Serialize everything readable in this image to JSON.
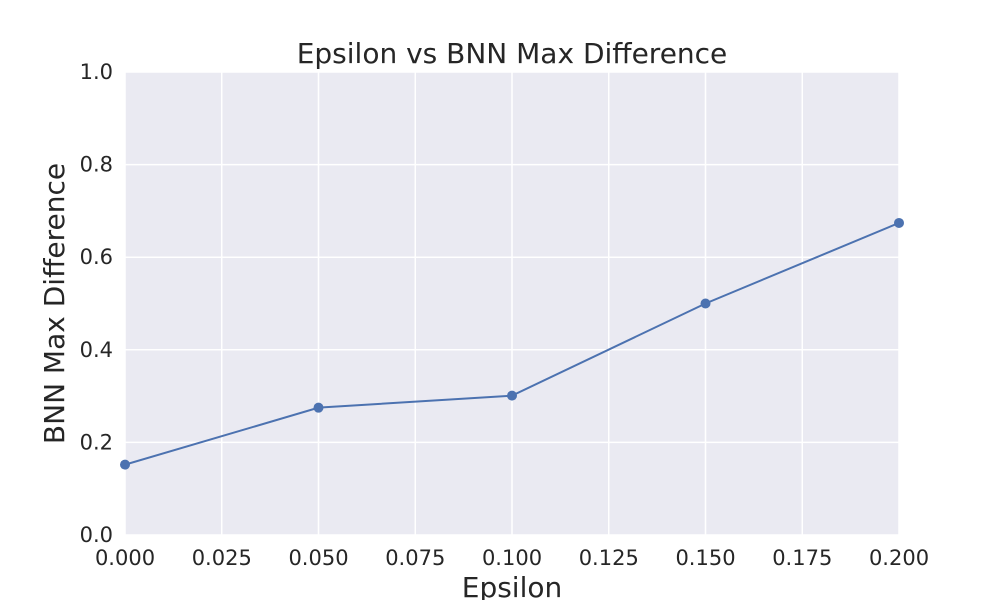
{
  "chart_data": {
    "type": "line",
    "title": "Epsilon vs BNN Max Difference",
    "xlabel": "Epsilon",
    "ylabel": "BNN Max Difference",
    "xlim": [
      0,
      0.2
    ],
    "ylim": [
      0,
      1.0
    ],
    "xticks": [
      "0.000",
      "0.025",
      "0.050",
      "0.075",
      "0.100",
      "0.125",
      "0.150",
      "0.175",
      "0.200"
    ],
    "yticks": [
      "0.0",
      "0.2",
      "0.4",
      "0.6",
      "0.8",
      "1.0"
    ],
    "grid": true,
    "series": [
      {
        "x": [
          0.0,
          0.05,
          0.1,
          0.15,
          0.2
        ],
        "y": [
          0.152,
          0.275,
          0.301,
          0.5,
          0.674
        ],
        "marker": "circle",
        "color": "#4c72b0"
      }
    ],
    "colors": {
      "plot_background": "#eaeaf2",
      "grid": "#ffffff",
      "line": "#4c72b0"
    }
  }
}
